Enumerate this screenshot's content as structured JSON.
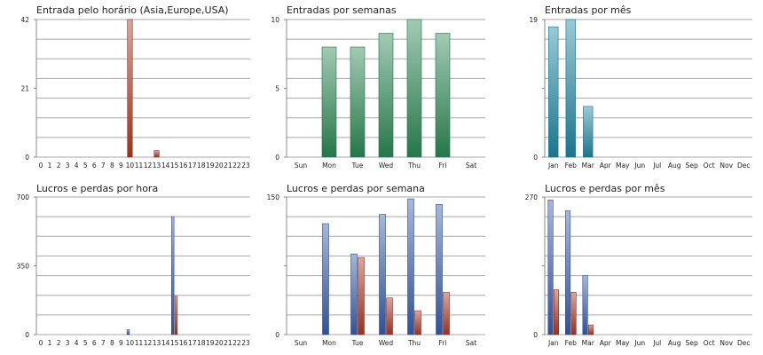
{
  "chart_data": [
    {
      "type": "bar",
      "title": "Entrada pelo horário (Asia,Europe,USA)",
      "categories": [
        "0",
        "1",
        "2",
        "3",
        "4",
        "5",
        "6",
        "7",
        "8",
        "9",
        "10",
        "11",
        "12",
        "13",
        "14",
        "15",
        "16",
        "17",
        "18",
        "19",
        "20",
        "21",
        "22",
        "23"
      ],
      "series": [
        {
          "values": [
            0,
            0,
            0,
            0,
            0,
            0,
            0,
            0,
            0,
            0,
            42,
            0,
            0,
            2,
            0,
            0,
            0,
            0,
            0,
            0,
            0,
            0,
            0,
            0
          ],
          "color": "#b23a22"
        }
      ],
      "ylim": [
        0,
        42
      ],
      "yticks": [
        "0",
        "21",
        "42"
      ],
      "grid": true
    },
    {
      "type": "bar",
      "title": "Entradas por semanas",
      "categories": [
        "Sun",
        "Mon",
        "Tue",
        "Wed",
        "Thu",
        "Fri",
        "Sat"
      ],
      "series": [
        {
          "values": [
            0,
            8,
            8,
            9,
            10,
            9,
            0
          ],
          "color": "#2e8b57"
        }
      ],
      "ylim": [
        0,
        10
      ],
      "yticks": [
        "0",
        "5",
        "10"
      ],
      "grid": true
    },
    {
      "type": "bar",
      "title": "Entradas por mês",
      "categories": [
        "Jan",
        "Feb",
        "Mar",
        "Apr",
        "May",
        "Jun",
        "Jul",
        "Aug",
        "Sep",
        "Oct",
        "Nov",
        "Dec"
      ],
      "series": [
        {
          "values": [
            18,
            19,
            7,
            0,
            0,
            0,
            0,
            0,
            0,
            0,
            0,
            0
          ],
          "color": "#1f8aa6"
        }
      ],
      "ylim": [
        0,
        19
      ],
      "yticks": [
        "0",
        "19"
      ],
      "grid": true
    },
    {
      "type": "bar",
      "title": "Lucros e perdas por hora",
      "categories": [
        "0",
        "1",
        "2",
        "3",
        "4",
        "5",
        "6",
        "7",
        "8",
        "9",
        "10",
        "11",
        "12",
        "13",
        "14",
        "15",
        "16",
        "17",
        "18",
        "19",
        "20",
        "21",
        "22",
        "23"
      ],
      "series": [
        {
          "values": [
            0,
            0,
            0,
            0,
            0,
            0,
            0,
            0,
            0,
            0,
            25,
            0,
            0,
            0,
            0,
            600,
            0,
            0,
            0,
            0,
            0,
            0,
            0,
            0
          ],
          "color": "#3a5fb0"
        },
        {
          "values": [
            0,
            0,
            0,
            0,
            0,
            0,
            0,
            0,
            0,
            0,
            0,
            0,
            0,
            0,
            0,
            195,
            0,
            0,
            0,
            0,
            0,
            0,
            0,
            0
          ],
          "color": "#b03a26"
        }
      ],
      "ylim": [
        0,
        700
      ],
      "yticks": [
        "0",
        "350",
        "700"
      ],
      "grid": true
    },
    {
      "type": "bar",
      "title": "Lucros e perdas por semana",
      "categories": [
        "Sun",
        "Mon",
        "Tue",
        "Wed",
        "Thu",
        "Fri",
        "Sat"
      ],
      "series": [
        {
          "values": [
            0,
            121,
            88,
            131,
            148,
            142,
            0
          ],
          "color": "#3a5fb0"
        },
        {
          "values": [
            0,
            0,
            84,
            40,
            26,
            46,
            0
          ],
          "color": "#b03a26"
        }
      ],
      "ylim": [
        0,
        150
      ],
      "yticks": [
        "0",
        "150"
      ],
      "grid": true
    },
    {
      "type": "bar",
      "title": "Lucros e perdas por mês",
      "categories": [
        "Jan",
        "Feb",
        "Mar",
        "Apr",
        "May",
        "Jun",
        "Jul",
        "Aug",
        "Sep",
        "Oct",
        "Nov",
        "Dec"
      ],
      "series": [
        {
          "values": [
            264,
            243,
            116,
            0,
            0,
            0,
            0,
            0,
            0,
            0,
            0,
            0
          ],
          "color": "#3a5fb0"
        },
        {
          "values": [
            88,
            83,
            19,
            0,
            0,
            0,
            0,
            0,
            0,
            0,
            0,
            0
          ],
          "color": "#b03a26"
        }
      ],
      "ylim": [
        0,
        270
      ],
      "yticks": [
        "0",
        "270"
      ],
      "grid": true
    }
  ]
}
